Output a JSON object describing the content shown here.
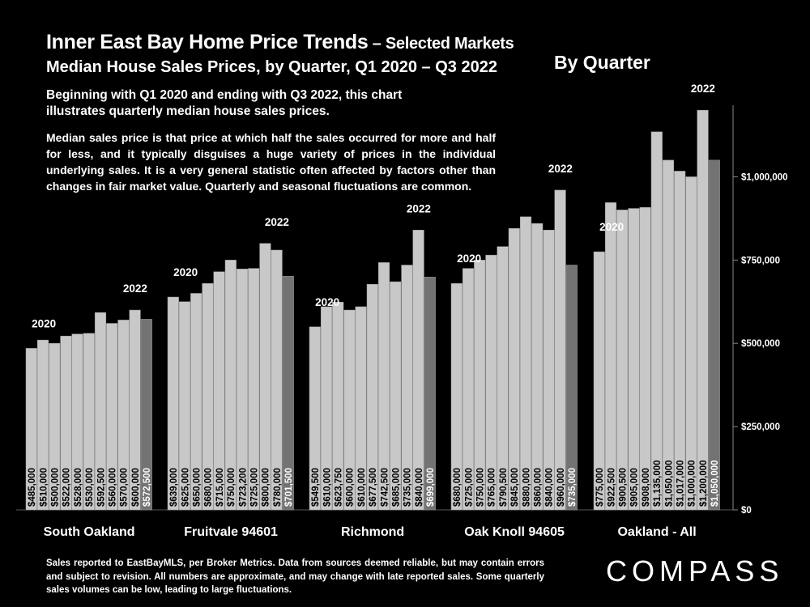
{
  "title": {
    "main": "Inner East Bay Home Price Trends",
    "main_suffix": " – Selected Markets",
    "second": "Median House Sales Prices, by Quarter, Q1 2020 – Q3 2022",
    "by_quarter": "By Quarter"
  },
  "description": {
    "p1": "Beginning with Q1 2020 and ending with Q3 2022, this chart illustrates quarterly median house sales prices.",
    "p2": "Median sales price is that price at which half the sales occurred for more and half for less, and it typically disguises a huge variety of prices in the individual underlying sales. It is a very general statistic often affected by factors other than changes in fair market value. Quarterly and seasonal fluctuations are common."
  },
  "footer": "Sales reported to EastBayMLS, per Broker Metrics. Data from sources deemed reliable, but may contain errors and subject to revision. All numbers are approximate, and may change with late reported sales. Some quarterly sales volumes can be low, leading to large fluctuations.",
  "logo": "COMPASS",
  "colors": {
    "bar": "#c8c8c8",
    "bar_last": "#737373",
    "background": "#000000",
    "text": "#ffffff"
  },
  "chart_data": {
    "type": "bar",
    "ylim": [
      0,
      1250000
    ],
    "yticks": [
      {
        "value": 0,
        "label": "$0"
      },
      {
        "value": 250000,
        "label": "$250,000"
      },
      {
        "value": 500000,
        "label": "$500,000"
      },
      {
        "value": 750000,
        "label": "$750,000"
      },
      {
        "value": 1000000,
        "label": "$1,000,000"
      }
    ],
    "year_labels": [
      "2020",
      "2022"
    ],
    "groups": [
      {
        "name": "South Oakland",
        "values": [
          485000,
          510000,
          500000,
          522000,
          528000,
          530000,
          592500,
          560000,
          570000,
          600000,
          572500
        ],
        "labels": [
          "$485,000",
          "$510,000",
          "$500,000",
          "$522,000",
          "$528,000",
          "$530,000",
          "$592,500",
          "$560,000",
          "$570,000",
          "$600,000",
          "$572,500"
        ]
      },
      {
        "name": "Fruitvale 94601",
        "values": [
          639000,
          625000,
          650000,
          680000,
          715000,
          750000,
          723200,
          725000,
          800000,
          780000,
          701500
        ],
        "labels": [
          "$639,000",
          "$625,000",
          "$650,000",
          "$680,000",
          "$715,000",
          "$750,000",
          "$723,200",
          "$725,000",
          "$800,000",
          "$780,000",
          "$701,500"
        ]
      },
      {
        "name": "Richmond",
        "values": [
          549500,
          610000,
          623750,
          600000,
          610000,
          677500,
          742500,
          685000,
          735000,
          840000,
          699000
        ],
        "labels": [
          "$549,500",
          "$610,000",
          "$623,750",
          "$600,000",
          "$610,000",
          "$677,500",
          "$742,500",
          "$685,000",
          "$735,000",
          "$840,000",
          "$699,000"
        ]
      },
      {
        "name": "Oak Knoll 94605",
        "values": [
          680000,
          725000,
          750000,
          765000,
          790500,
          845000,
          880000,
          860000,
          840000,
          960000,
          735000
        ],
        "labels": [
          "$680,000",
          "$725,000",
          "$750,000",
          "$765,000",
          "$790,500",
          "$845,000",
          "$880,000",
          "$860,000",
          "$840,000",
          "$960,000",
          "$735,000"
        ]
      },
      {
        "name": "Oakland - All",
        "values": [
          775000,
          922500,
          900500,
          905000,
          908000,
          1135000,
          1050000,
          1017000,
          1000000,
          1200000,
          1050000
        ],
        "labels": [
          "$775,000",
          "$922,500",
          "$900,500",
          "$905,000",
          "$908,000",
          "$1,135,000",
          "$1,050,000",
          "$1,017,000",
          "$1,000,000",
          "$1,200,000",
          "$1,050,000"
        ]
      }
    ]
  }
}
